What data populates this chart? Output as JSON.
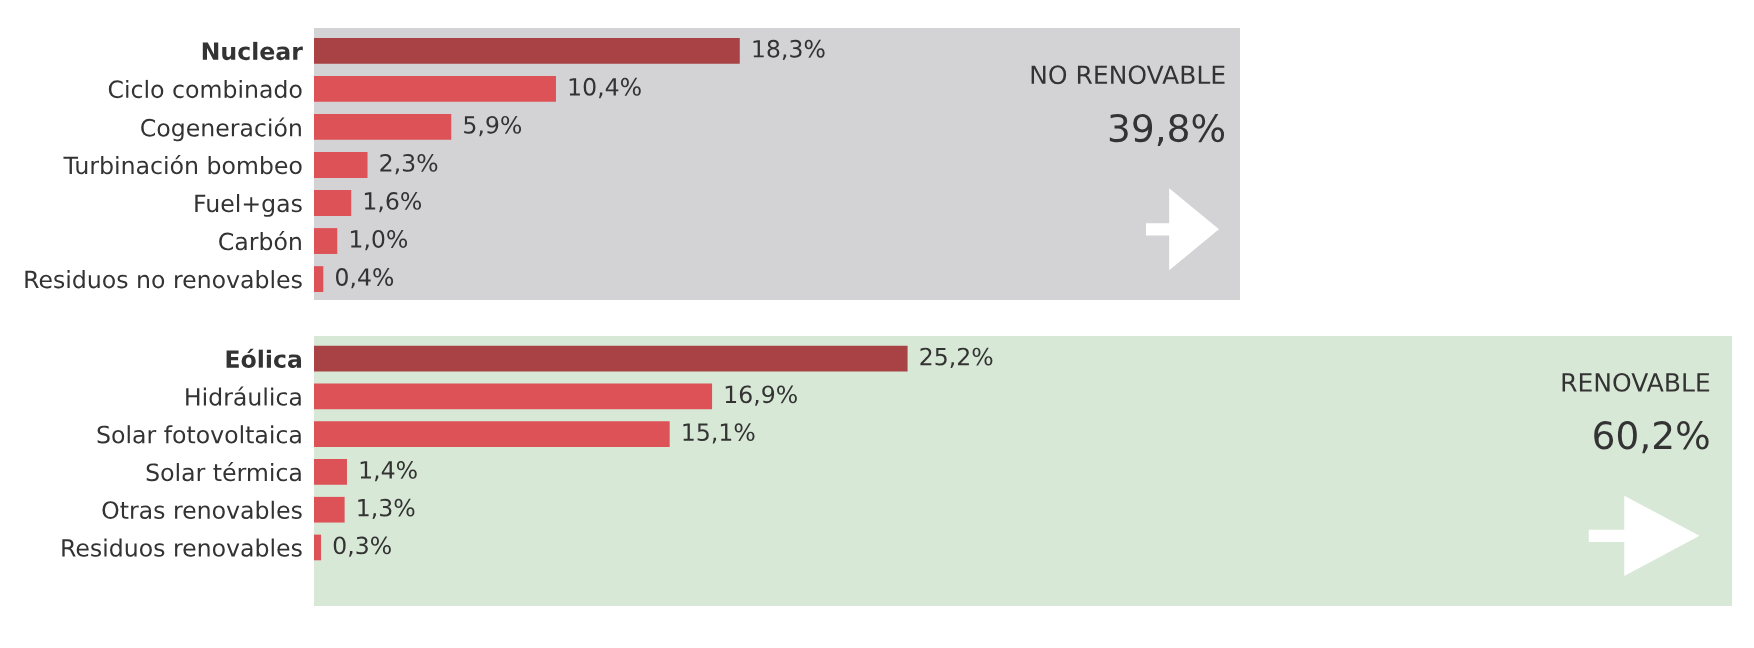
{
  "chart_data": [
    {
      "type": "bar",
      "orientation": "horizontal",
      "categories": [
        "Nuclear",
        "Ciclo combinado",
        "Cogeneración",
        "Turbinación bombeo",
        "Fuel+gas",
        "Carbón",
        "Residuos no renovables"
      ],
      "values": [
        18.3,
        10.4,
        5.9,
        2.3,
        1.6,
        1.0,
        0.4
      ],
      "value_labels": [
        "18,3%",
        "10,4%",
        "5,9%",
        "2,3%",
        "1,6%",
        "1,0%",
        "0,4%"
      ],
      "colors": [
        "#a84245",
        "#dc5257",
        "#dc5257",
        "#dc5257",
        "#dc5257",
        "#dc5257",
        "#dc5257"
      ],
      "xlim": [
        0,
        39.8
      ],
      "tick_labels": "y",
      "grid": false,
      "legend": false,
      "annotations": [
        "NO RENOVABLE",
        "39,8%"
      ]
    },
    {
      "type": "bar",
      "orientation": "horizontal",
      "categories": [
        "Eólica",
        "Hidráulica",
        "Solar fotovoltaica",
        "Solar térmica",
        "Otras renovables",
        "Residuos renovables"
      ],
      "values": [
        25.2,
        16.9,
        15.1,
        1.4,
        1.3,
        0.3
      ],
      "value_labels": [
        "25,2%",
        "16,9%",
        "15,1%",
        "1,4%",
        "1,3%",
        "0,3%"
      ],
      "colors": [
        "#a84245",
        "#dc5257",
        "#dc5257",
        "#dc5257",
        "#dc5257",
        "#dc5257"
      ],
      "xlim": [
        0,
        60.2
      ],
      "tick_labels": "y",
      "grid": false,
      "legend": false,
      "annotations": [
        "RENOVABLE",
        "60,2%"
      ]
    }
  ]
}
